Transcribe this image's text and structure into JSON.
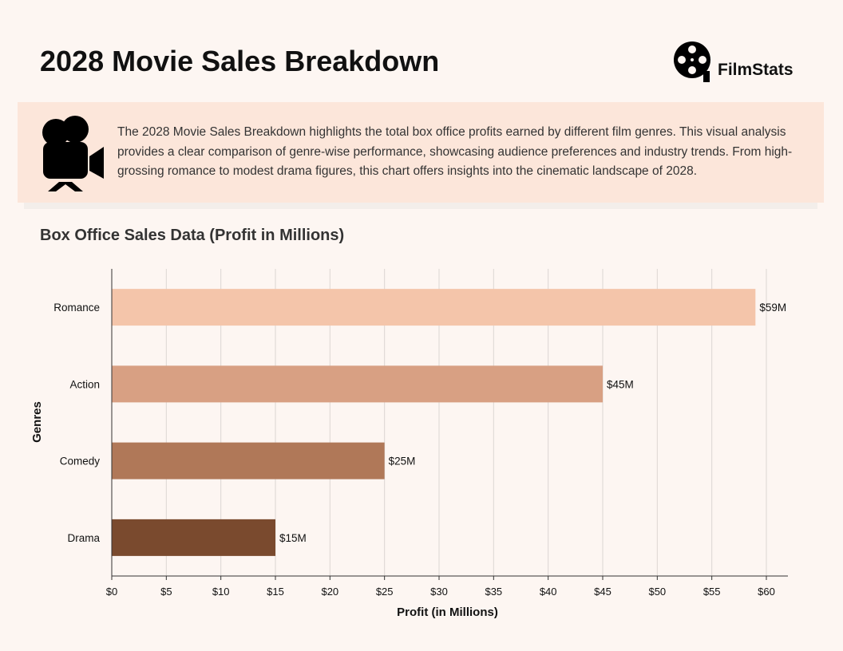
{
  "header": {
    "title": "2028 Movie Sales Breakdown",
    "logo_text": "FilmStats",
    "logo_icon": "film-reel-icon"
  },
  "banner": {
    "icon": "movie-camera-icon",
    "text": "The 2028 Movie Sales Breakdown highlights the total box office profits earned by different film genres. This visual analysis provides a clear comparison of genre-wise performance, showcasing audience preferences and industry trends. From high-grossing romance to modest drama figures, this chart offers insights into the cinematic landscape of 2028."
  },
  "chart_data": {
    "type": "bar",
    "orientation": "horizontal",
    "title": "Box Office Sales Data (Profit in Millions)",
    "xlabel": "Profit (in Millions)",
    "ylabel": "Genres",
    "categories": [
      "Romance",
      "Action",
      "Comedy",
      "Drama"
    ],
    "values": [
      59,
      45,
      25,
      15
    ],
    "data_labels": [
      "$59M",
      "$45M",
      "$25M",
      "$15M"
    ],
    "colors": [
      "#f4c5aa",
      "#d8a083",
      "#b07858",
      "#7a4a2e"
    ],
    "xlim": [
      0,
      62
    ],
    "xticks": [
      0,
      5,
      10,
      15,
      20,
      25,
      30,
      35,
      40,
      45,
      50,
      55,
      60
    ],
    "xtick_labels": [
      "$0",
      "$5",
      "$10",
      "$15",
      "$20",
      "$25",
      "$30",
      "$35",
      "$40",
      "$45",
      "$50",
      "$55",
      "$60"
    ],
    "grid": "vertical",
    "legend": "none"
  }
}
